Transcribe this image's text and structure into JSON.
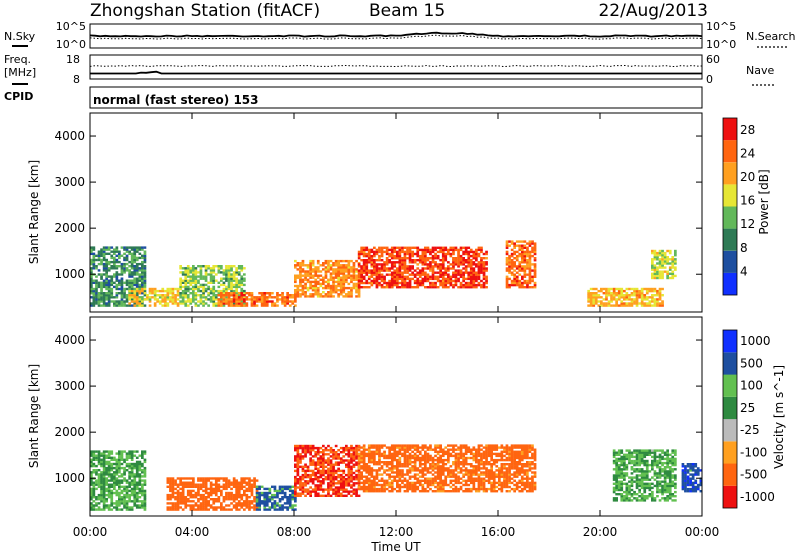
{
  "header": {
    "station": "Zhongshan Station (fitACF)",
    "beam": "Beam 15",
    "date": "22/Aug/2013"
  },
  "noise_panel": {
    "left_label": "N.Sky",
    "left_ticks": [
      "10^5",
      "10^0"
    ],
    "right_label": "N.Search",
    "right_ticks": [
      "10^5",
      "10^0"
    ]
  },
  "freq_panel": {
    "left_label_top": "Freq.",
    "left_label_bottom": "[MHz]",
    "left_ticks": [
      "18",
      "8"
    ],
    "right_label": "Nave",
    "right_ticks": [
      "60",
      "0"
    ]
  },
  "cpid_panel": {
    "label": "CPID",
    "mode": "normal (fast stereo) 153"
  },
  "axes": {
    "ylabel": "Slant Range [km]",
    "yticks": [
      "1000",
      "2000",
      "3000",
      "4000"
    ],
    "xlabel": "Time UT",
    "xticks": [
      "00:00",
      "04:00",
      "08:00",
      "12:00",
      "16:00",
      "20:00",
      "00:00"
    ]
  },
  "colors": {
    "power": [
      "#1030ff",
      "#1e4fa0",
      "#2e7a55",
      "#62b85a",
      "#e6e635",
      "#ffa020",
      "#ff6510",
      "#ee1010"
    ],
    "velocity": [
      "#ee1010",
      "#ff6510",
      "#ffa020",
      "#bbbbbb",
      "#2e8a40",
      "#62c050",
      "#1e4fa0",
      "#1030ff"
    ]
  },
  "chart_data": [
    {
      "type": "heatmap",
      "name": "Power",
      "title": "",
      "xlabel": "Time UT",
      "ylabel": "Slant Range [km]",
      "xlim": [
        0,
        24
      ],
      "ylim": [
        180,
        4500
      ],
      "colorbar_label": "Power [dB]",
      "colorbar_ticks": [
        "4",
        "8",
        "12",
        "16",
        "20",
        "24",
        "28"
      ],
      "colorbar_range": [
        0,
        30
      ],
      "regions": [
        {
          "t": [
            0.0,
            2.2
          ],
          "r": [
            300,
            1600
          ],
          "level": 10
        },
        {
          "t": [
            1.5,
            3.5
          ],
          "r": [
            300,
            700
          ],
          "level": 18
        },
        {
          "t": [
            3.5,
            6.0
          ],
          "r": [
            300,
            1200
          ],
          "level": 14
        },
        {
          "t": [
            5.0,
            8.0
          ],
          "r": [
            300,
            600
          ],
          "level": 24
        },
        {
          "t": [
            8.0,
            10.5
          ],
          "r": [
            500,
            1300
          ],
          "level": 22
        },
        {
          "t": [
            10.5,
            15.5
          ],
          "r": [
            700,
            1600
          ],
          "level": 26
        },
        {
          "t": [
            16.3,
            17.5
          ],
          "r": [
            700,
            1700
          ],
          "level": 24
        },
        {
          "t": [
            19.5,
            22.5
          ],
          "r": [
            300,
            700
          ],
          "level": 20
        },
        {
          "t": [
            22.0,
            23.0
          ],
          "r": [
            900,
            1500
          ],
          "level": 16
        }
      ]
    },
    {
      "type": "heatmap",
      "name": "Velocity",
      "title": "",
      "xlabel": "Time UT",
      "ylabel": "Slant Range [km]",
      "xlim": [
        0,
        24
      ],
      "ylim": [
        180,
        4500
      ],
      "colorbar_label": "Velocity [m s^-1]",
      "colorbar_ticks": [
        "1000",
        "500",
        "100",
        "25",
        "-25",
        "-100",
        "-500",
        "-1000"
      ],
      "colorbar_range": [
        -1000,
        1000
      ],
      "regions": [
        {
          "t": [
            0.0,
            2.2
          ],
          "r": [
            300,
            1600
          ],
          "level": 100
        },
        {
          "t": [
            3.0,
            6.5
          ],
          "r": [
            300,
            1000
          ],
          "level": -300
        },
        {
          "t": [
            6.5,
            8.0
          ],
          "r": [
            300,
            800
          ],
          "level": 600
        },
        {
          "t": [
            8.0,
            10.5
          ],
          "r": [
            600,
            1700
          ],
          "level": -500
        },
        {
          "t": [
            10.5,
            17.5
          ],
          "r": [
            700,
            1700
          ],
          "level": -150
        },
        {
          "t": [
            20.5,
            23.0
          ],
          "r": [
            500,
            1600
          ],
          "level": 100
        },
        {
          "t": [
            23.2,
            24.0
          ],
          "r": [
            700,
            1300
          ],
          "level": 800
        }
      ]
    }
  ]
}
